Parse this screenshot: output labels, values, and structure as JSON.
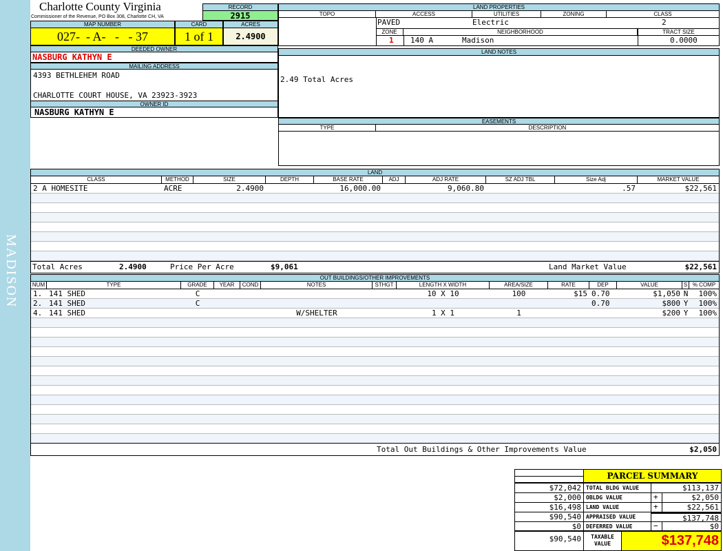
{
  "sidebar_label": "MADISON",
  "header": {
    "county": "Charlotte County Virginia",
    "office": "Commissioner of the Revenue, PO Box 308, Charlotte CH, VA",
    "record_label": "RECORD",
    "record": "2915"
  },
  "parcel": {
    "map_label": "MAP NUMBER",
    "map_number": "027-  - A-   -   - 37",
    "card_label": "CARD",
    "card": "1 of 1",
    "acres_label": "ACRES",
    "acres": "2.4900"
  },
  "owner": {
    "deeded_label": "DEEDED OWNER",
    "deeded": "NASBURG KATHYN E",
    "mailing_label": "MAILING ADDRESS",
    "address1": "4393 BETHLEHEM ROAD",
    "address2": "CHARLOTTE COURT HOUSE, VA 23923-3923",
    "owner_id_label": "OWNER ID",
    "owner_id": "NASBURG KATHYN E"
  },
  "land_properties": {
    "title": "LAND PROPERTIES",
    "headers": [
      "TOPO",
      "ACCESS",
      "UTILITIES",
      "ZONING",
      "CLASS"
    ],
    "access": "PAVED",
    "utilities": "Electric",
    "class": "2",
    "zone_label": "ZONE",
    "neighborhood_label": "NEIGHBORHOOD",
    "tract_label": "TRACT SIZE",
    "zone": "1",
    "neighborhood_code": "140 A",
    "neighborhood": "Madison",
    "tract_size": "0.0000"
  },
  "land_notes": {
    "title": "LAND NOTES",
    "text": "2.49 Total Acres"
  },
  "easements": {
    "title": "EASEMENTS",
    "type_label": "TYPE",
    "desc_label": "DESCRIPTION"
  },
  "land": {
    "title": "LAND",
    "headers": [
      "CLASS",
      "METHOD",
      "SIZE",
      "DEPTH",
      "BASE RATE",
      "ADJ",
      "ADJ RATE",
      "SZ ADJ TBL",
      "Size Adj",
      "MARKET VALUE"
    ],
    "rows": [
      [
        "2 A HOMESITE",
        "ACRE",
        "2.4900",
        "",
        "16,000.00",
        "",
        "9,060.80",
        "",
        ".57",
        "$22,561"
      ]
    ],
    "total_acres_label": "Total Acres",
    "total_acres": "2.4900",
    "ppa_label": "Price Per Acre",
    "ppa": "$9,061",
    "market_label": "Land Market Value",
    "market": "$22,561"
  },
  "outbuildings": {
    "title": "OUT BUILDINGS/OTHER IMPROVEMENTS",
    "headers": [
      "NUM",
      "TYPE",
      "GRADE",
      "YEAR",
      "COND",
      "NOTES",
      "STHGT",
      "LENGTH X WIDTH",
      "AREA/SIZE",
      "RATE",
      "DEP",
      "VALUE",
      "S",
      "% COMP"
    ],
    "rows": [
      [
        "1.",
        "141 SHED",
        "C",
        "",
        "",
        "",
        "",
        "10 X 10",
        "100",
        "$15",
        "0.70",
        "$1,050",
        "N",
        "100%"
      ],
      [
        "2.",
        "141 SHED",
        "C",
        "",
        "",
        "",
        "",
        "",
        "",
        "",
        "0.70",
        "$800",
        "Y",
        "100%"
      ],
      [
        "4.",
        "141 SHED",
        "",
        "",
        "",
        "W/SHELTER",
        "",
        "1 X 1",
        "1",
        "",
        "",
        "$200",
        "Y",
        "100%"
      ]
    ],
    "total_label": "Total Out Buildings & Other Improvements Value",
    "total": "$2,050"
  },
  "summary": {
    "title": "PARCEL SUMMARY",
    "rows": [
      {
        "left": "$72,042",
        "label": "TOTAL BLDG VALUE",
        "sign": "",
        "value": "$113,137"
      },
      {
        "left": "$2,000",
        "label": "OBLDG VALUE",
        "sign": "+",
        "value": "$2,050"
      },
      {
        "left": "$16,498",
        "label": "LAND VALUE",
        "sign": "+",
        "value": "$22,561"
      },
      {
        "left": "$90,540",
        "label": "APPRAISED VALUE",
        "sign": "",
        "value": "$137,748"
      },
      {
        "left": "$0",
        "label": "DEFERRED VALUE",
        "sign": "−",
        "value": "$0"
      }
    ],
    "taxable_left": "$90,540",
    "taxable_label": "TAXABLE VALUE",
    "taxable": "$137,748"
  },
  "colors": {
    "header_bg": "#add8e6",
    "record_bg": "#90ee90",
    "highlight": "#ffff00",
    "owner_red": "#e00000"
  }
}
